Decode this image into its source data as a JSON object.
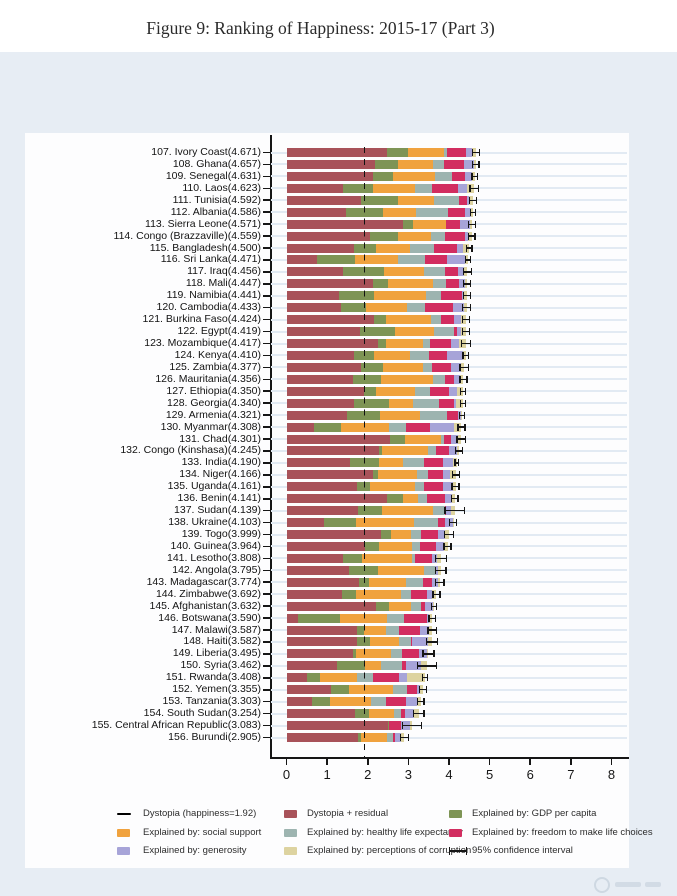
{
  "figure": {
    "title": "Figure 9: Ranking of Happiness: 2015-17 (Part 3)"
  },
  "chart_data": {
    "type": "bar",
    "orientation": "horizontal-stacked",
    "title": "Figure 9: Ranking of Happiness: 2015-17 (Part 3)",
    "xlabel": "",
    "ylabel": "",
    "x_axis": {
      "range": [
        0,
        8
      ],
      "ticks": [
        0,
        1,
        2,
        3,
        4,
        5,
        6,
        7,
        8
      ],
      "grid": false
    },
    "dystopia_line": {
      "value": 1.92,
      "label": "Dystopia (happiness=1.92)"
    },
    "ci_label": "95% confidence interval",
    "values_order": [
      "dystopia_residual",
      "gdp",
      "social",
      "health",
      "freedom",
      "generosity",
      "corruption"
    ],
    "series_meta": {
      "dystopia_residual": {
        "label": "Dystopia + residual",
        "color": "#a85259"
      },
      "gdp": {
        "label": "Explained by: GDP per capita",
        "color": "#7e9455"
      },
      "social": {
        "label": "Explained by: social support",
        "color": "#f0a23e"
      },
      "health": {
        "label": "Explained by: healthy life expectancy",
        "color": "#9db4b0"
      },
      "freedom": {
        "label": "Explained by: freedom to make life choices",
        "color": "#d22d60"
      },
      "generosity": {
        "label": "Explained by: generosity",
        "color": "#a7a4d8"
      },
      "corruption": {
        "label": "Explained by: perceptions of corruption",
        "color": "#ddd3a0"
      }
    },
    "countries": [
      {
        "rank": 107,
        "name": "Ivory Coast",
        "score": 4.671,
        "values": [
          2.462,
          0.541,
          0.872,
          0.08,
          0.467,
          0.146,
          0.103
        ],
        "ci": 0.1
      },
      {
        "rank": 108,
        "name": "Ghana",
        "score": 4.657,
        "values": [
          2.177,
          0.567,
          0.854,
          0.267,
          0.498,
          0.251,
          0.043
        ],
        "ci": 0.1
      },
      {
        "rank": 109,
        "name": "Senegal",
        "score": 4.631,
        "values": [
          2.135,
          0.479,
          1.049,
          0.409,
          0.334,
          0.153,
          0.072
        ],
        "ci": 0.08
      },
      {
        "rank": 110,
        "name": "Laos",
        "score": 4.623,
        "values": [
          1.398,
          0.72,
          1.034,
          0.441,
          0.626,
          0.23,
          0.174
        ],
        "ci": 0.12
      },
      {
        "rank": 111,
        "name": "Tunisia",
        "score": 4.592,
        "values": [
          1.845,
          0.891,
          0.9,
          0.617,
          0.191,
          0.06,
          0.088
        ],
        "ci": 0.1
      },
      {
        "rank": 112,
        "name": "Albania",
        "score": 4.586,
        "values": [
          1.463,
          0.916,
          0.817,
          0.79,
          0.419,
          0.149,
          0.032
        ],
        "ci": 0.08
      },
      {
        "rank": 113,
        "name": "Sierra Leone",
        "score": 4.571,
        "values": [
          2.856,
          0.256,
          0.813,
          0.0,
          0.355,
          0.238,
          0.053
        ],
        "ci": 0.1
      },
      {
        "rank": 114,
        "name": "Congo (Brazzaville)",
        "score": 4.559,
        "values": [
          2.054,
          0.682,
          0.811,
          0.343,
          0.514,
          0.066,
          0.089
        ],
        "ci": 0.1
      },
      {
        "rank": 115,
        "name": "Bangladesh",
        "score": 4.5,
        "values": [
          1.662,
          0.532,
          0.85,
          0.579,
          0.58,
          0.153,
          0.144
        ],
        "ci": 0.08
      },
      {
        "rank": 116,
        "name": "Sri Lanka",
        "score": 4.471,
        "values": [
          0.763,
          0.918,
          1.056,
          0.68,
          0.531,
          0.449,
          0.074
        ],
        "ci": 0.08
      },
      {
        "rank": 117,
        "name": "Iraq",
        "score": 4.456,
        "values": [
          1.392,
          1.01,
          0.971,
          0.536,
          0.304,
          0.148,
          0.095
        ],
        "ci": 0.12
      },
      {
        "rank": 118,
        "name": "Mali",
        "score": 4.447,
        "values": [
          2.117,
          0.385,
          1.105,
          0.308,
          0.327,
          0.153,
          0.052
        ],
        "ci": 0.1
      },
      {
        "rank": 119,
        "name": "Namibia",
        "score": 4.441,
        "values": [
          1.287,
          0.874,
          1.281,
          0.365,
          0.519,
          0.051,
          0.064
        ],
        "ci": 0.1
      },
      {
        "rank": 120,
        "name": "Cambodia",
        "score": 4.433,
        "values": [
          1.351,
          0.601,
          1.006,
          0.457,
          0.696,
          0.257,
          0.065
        ],
        "ci": 0.12
      },
      {
        "rank": 121,
        "name": "Burkina Faso",
        "score": 4.424,
        "values": [
          2.144,
          0.314,
          1.097,
          0.254,
          0.312,
          0.175,
          0.128
        ],
        "ci": 0.1
      },
      {
        "rank": 122,
        "name": "Egypt",
        "score": 4.419,
        "values": [
          1.807,
          0.873,
          0.949,
          0.497,
          0.075,
          0.104,
          0.114
        ],
        "ci": 0.1
      },
      {
        "rank": 123,
        "name": "Mozambique",
        "score": 4.417,
        "values": [
          2.249,
          0.198,
          0.902,
          0.173,
          0.531,
          0.206,
          0.158
        ],
        "ci": 0.12
      },
      {
        "rank": 124,
        "name": "Kenya",
        "score": 4.41,
        "values": [
          1.669,
          0.493,
          0.886,
          0.45,
          0.452,
          0.399,
          0.061
        ],
        "ci": 0.08
      },
      {
        "rank": 125,
        "name": "Zambia",
        "score": 4.377,
        "values": [
          1.825,
          0.562,
          0.968,
          0.231,
          0.457,
          0.247,
          0.087
        ],
        "ci": 0.12
      },
      {
        "rank": 126,
        "name": "Mauritania",
        "score": 4.356,
        "values": [
          1.639,
          0.693,
          1.285,
          0.284,
          0.225,
          0.137,
          0.093
        ],
        "ci": 0.1
      },
      {
        "rank": 127,
        "name": "Ethiopia",
        "score": 4.35,
        "values": [
          1.896,
          0.308,
          0.95,
          0.391,
          0.452,
          0.198,
          0.155
        ],
        "ci": 0.08
      },
      {
        "rank": 128,
        "name": "Georgia",
        "score": 4.34,
        "values": [
          1.669,
          0.853,
          0.592,
          0.643,
          0.375,
          0.041,
          0.167
        ],
        "ci": 0.08
      },
      {
        "rank": 129,
        "name": "Armenia",
        "score": 4.321,
        "values": [
          1.484,
          0.816,
          0.99,
          0.666,
          0.26,
          0.077,
          0.028
        ],
        "ci": 0.08
      },
      {
        "rank": 130,
        "name": "Myanmar",
        "score": 4.308,
        "values": [
          0.667,
          0.682,
          1.174,
          0.429,
          0.58,
          0.598,
          0.178
        ],
        "ci": 0.1
      },
      {
        "rank": 131,
        "name": "Chad",
        "score": 4.301,
        "values": [
          2.549,
          0.358,
          0.907,
          0.053,
          0.188,
          0.175,
          0.071
        ],
        "ci": 0.12
      },
      {
        "rank": 132,
        "name": "Congo (Kinshasa)",
        "score": 4.245,
        "values": [
          2.275,
          0.069,
          1.136,
          0.204,
          0.312,
          0.197,
          0.052
        ],
        "ci": 0.1
      },
      {
        "rank": 133,
        "name": "India",
        "score": 4.19,
        "values": [
          1.552,
          0.721,
          0.6,
          0.51,
          0.46,
          0.262,
          0.085
        ],
        "ci": 0.06
      },
      {
        "rank": 134,
        "name": "Niger",
        "score": 4.166,
        "values": [
          2.121,
          0.138,
          0.946,
          0.275,
          0.364,
          0.188,
          0.134
        ],
        "ci": 0.1
      },
      {
        "rank": 135,
        "name": "Uganda",
        "score": 4.161,
        "values": [
          1.742,
          0.322,
          1.09,
          0.237,
          0.45,
          0.259,
          0.061
        ],
        "ci": 0.1
      },
      {
        "rank": 136,
        "name": "Benin",
        "score": 4.141,
        "values": [
          2.481,
          0.378,
          0.372,
          0.24,
          0.44,
          0.163,
          0.067
        ],
        "ci": 0.1
      },
      {
        "rank": 137,
        "name": "Sudan",
        "score": 4.139,
        "values": [
          1.75,
          0.605,
          1.24,
          0.312,
          0.016,
          0.134,
          0.082
        ],
        "ci": 0.25
      },
      {
        "rank": 138,
        "name": "Ukraine",
        "score": 4.103,
        "values": [
          0.927,
          0.793,
          1.413,
          0.609,
          0.163,
          0.187,
          0.011
        ],
        "ci": 0.1
      },
      {
        "rank": 139,
        "name": "Togo",
        "score": 3.999,
        "values": [
          2.32,
          0.259,
          0.474,
          0.253,
          0.434,
          0.158,
          0.101
        ],
        "ci": 0.12
      },
      {
        "rank": 140,
        "name": "Guinea",
        "score": 3.964,
        "values": [
          1.944,
          0.344,
          0.792,
          0.211,
          0.394,
          0.185,
          0.094
        ],
        "ci": 0.1
      },
      {
        "rank": 141,
        "name": "Lesotho",
        "score": 3.808,
        "values": [
          1.391,
          0.472,
          1.215,
          0.079,
          0.423,
          0.116,
          0.112
        ],
        "ci": 0.15
      },
      {
        "rank": 142,
        "name": "Angola",
        "score": 3.795,
        "values": [
          1.531,
          0.73,
          1.125,
          0.269,
          0.0,
          0.079,
          0.061
        ],
        "ci": 0.15
      },
      {
        "rank": 143,
        "name": "Madagascar",
        "score": 3.774,
        "values": [
          1.777,
          0.262,
          0.908,
          0.402,
          0.221,
          0.155,
          0.049
        ],
        "ci": 0.12
      },
      {
        "rank": 144,
        "name": "Zimbabwe",
        "score": 3.692,
        "values": [
          1.356,
          0.357,
          1.094,
          0.248,
          0.406,
          0.132,
          0.099
        ],
        "ci": 0.1
      },
      {
        "rank": 145,
        "name": "Afghanistan",
        "score": 3.632,
        "values": [
          2.196,
          0.332,
          0.537,
          0.255,
          0.085,
          0.191,
          0.036
        ],
        "ci": 0.08
      },
      {
        "rank": 146,
        "name": "Botswana",
        "score": 3.59,
        "values": [
          0.291,
          1.017,
          1.174,
          0.417,
          0.557,
          0.042,
          0.092
        ],
        "ci": 0.1
      },
      {
        "rank": 147,
        "name": "Malawi",
        "score": 3.587,
        "values": [
          1.733,
          0.186,
          0.541,
          0.306,
          0.531,
          0.21,
          0.08
        ],
        "ci": 0.12
      },
      {
        "rank": 148,
        "name": "Haiti",
        "score": 3.582,
        "values": [
          1.737,
          0.315,
          0.714,
          0.289,
          0.025,
          0.392,
          0.11
        ],
        "ci": 0.15
      },
      {
        "rank": 149,
        "name": "Liberia",
        "score": 3.495,
        "values": [
          1.639,
          0.076,
          0.858,
          0.267,
          0.419,
          0.206,
          0.03
        ],
        "ci": 0.15
      },
      {
        "rank": 150,
        "name": "Syria",
        "score": 3.462,
        "values": [
          1.244,
          0.689,
          0.382,
          0.539,
          0.088,
          0.376,
          0.144
        ],
        "ci": 0.25
      },
      {
        "rank": 151,
        "name": "Rwanda",
        "score": 3.408,
        "values": [
          0.5,
          0.332,
          0.896,
          0.4,
          0.636,
          0.2,
          0.444
        ],
        "ci": 0.08
      },
      {
        "rank": 152,
        "name": "Yemen",
        "score": 3.355,
        "values": [
          1.106,
          0.442,
          1.073,
          0.343,
          0.244,
          0.083,
          0.064
        ],
        "ci": 0.1
      },
      {
        "rank": 153,
        "name": "Tanzania",
        "score": 3.303,
        "values": [
          0.628,
          0.455,
          0.991,
          0.381,
          0.481,
          0.27,
          0.097
        ],
        "ci": 0.1
      },
      {
        "rank": 154,
        "name": "South Sudan",
        "score": 3.254,
        "values": [
          1.69,
          0.337,
          0.608,
          0.177,
          0.112,
          0.224,
          0.106
        ],
        "ci": 0.15
      },
      {
        "rank": 155,
        "name": "Central African Republic",
        "score": 3.083,
        "values": [
          2.488,
          0.024,
          0.0,
          0.01,
          0.305,
          0.218,
          0.038
        ],
        "ci": 0.25
      },
      {
        "rank": 156,
        "name": "Burundi",
        "score": 2.905,
        "values": [
          1.752,
          0.091,
          0.627,
          0.145,
          0.065,
          0.149,
          0.076
        ],
        "ci": 0.12
      }
    ],
    "legend_layout": [
      {
        "type": "line",
        "col": 0,
        "row": 0,
        "label": "Dystopia (happiness=1.92)"
      },
      {
        "type": "swatch",
        "col": 1,
        "row": 0,
        "key": "dystopia_residual"
      },
      {
        "type": "swatch",
        "col": 2,
        "row": 0,
        "key": "gdp"
      },
      {
        "type": "swatch",
        "col": 0,
        "row": 1,
        "key": "social"
      },
      {
        "type": "swatch",
        "col": 1,
        "row": 1,
        "key": "health"
      },
      {
        "type": "swatch",
        "col": 2,
        "row": 1,
        "key": "freedom"
      },
      {
        "type": "swatch",
        "col": 0,
        "row": 2,
        "key": "generosity"
      },
      {
        "type": "swatch",
        "col": 1,
        "row": 2,
        "key": "corruption"
      },
      {
        "type": "errorbar",
        "col": 2,
        "row": 2,
        "label": "95% confidence interval"
      }
    ]
  }
}
